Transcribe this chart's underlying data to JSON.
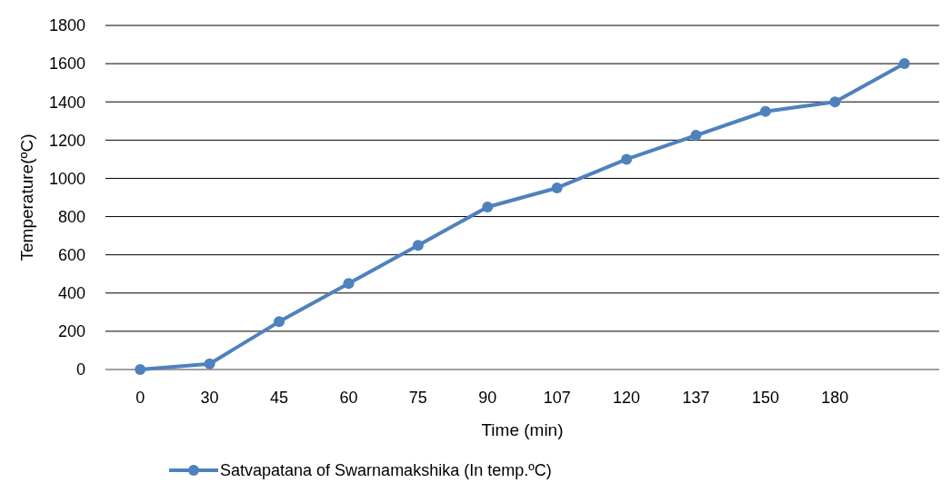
{
  "chart_data": {
    "type": "line",
    "xlabel": "Time (min)",
    "ylabel": "Temperature(ºC)",
    "categories": [
      "0",
      "30",
      "45",
      "60",
      "75",
      "90",
      "107",
      "120",
      "137",
      "150",
      "180",
      null
    ],
    "series": [
      {
        "name": "Satvapatana of Swarnamakshika  (In temp.ºC)",
        "color": "#4f81bd",
        "values": [
          0,
          30,
          250,
          450,
          650,
          850,
          950,
          1100,
          1225,
          1350,
          1400,
          1600
        ]
      }
    ],
    "ylim": [
      0,
      1800
    ],
    "yticks": [
      0,
      200,
      400,
      600,
      800,
      1000,
      1200,
      1400,
      1600,
      1800
    ],
    "grid": "y",
    "legend": "bottom",
    "marker": "circle",
    "line_style": "solid"
  }
}
